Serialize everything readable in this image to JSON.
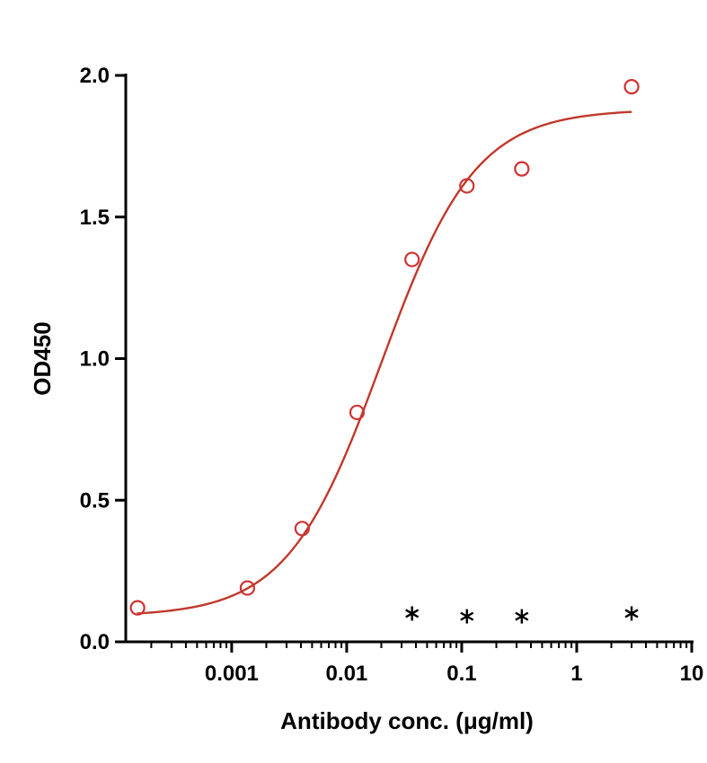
{
  "chart_data": {
    "type": "scatter",
    "title": "",
    "xlabel": "Antibody conc. (μg/ml)",
    "ylabel": "OD450",
    "x_scale": "log",
    "xlim": [
      0.00012,
      10
    ],
    "ylim": [
      0,
      2.0
    ],
    "x_ticks": [
      {
        "value": 0.001,
        "label": "0.001"
      },
      {
        "value": 0.01,
        "label": "0.01"
      },
      {
        "value": 0.1,
        "label": "0.1"
      },
      {
        "value": 1,
        "label": "1"
      },
      {
        "value": 10,
        "label": "10"
      }
    ],
    "y_ticks": [
      {
        "value": 0.0,
        "label": "0.0"
      },
      {
        "value": 0.5,
        "label": "0.5"
      },
      {
        "value": 1.0,
        "label": "1.0"
      },
      {
        "value": 1.5,
        "label": "1.5"
      },
      {
        "value": 2.0,
        "label": "2.0"
      }
    ],
    "grid": false,
    "legend": "none",
    "series": [
      {
        "marker": "open-circle",
        "color": "#d03232",
        "points": [
          {
            "x": 0.000152,
            "y": 0.12
          },
          {
            "x": 0.00137,
            "y": 0.19
          },
          {
            "x": 0.0041,
            "y": 0.4
          },
          {
            "x": 0.0123,
            "y": 0.81
          },
          {
            "x": 0.037,
            "y": 1.35
          },
          {
            "x": 0.111,
            "y": 1.61
          },
          {
            "x": 0.333,
            "y": 1.67
          },
          {
            "x": 3.0,
            "y": 1.96
          }
        ],
        "fit": {
          "type": "4PL",
          "bottom": 0.09,
          "top": 1.88,
          "ec50": 0.02,
          "hill": 1.06,
          "x_range": [
            0.00015,
            3.0
          ],
          "color": "#c0392b"
        }
      },
      {
        "marker": "asterisk",
        "color": "#000000",
        "points": [
          {
            "x": 0.037,
            "y": 0.1
          },
          {
            "x": 0.111,
            "y": 0.09
          },
          {
            "x": 0.333,
            "y": 0.09
          },
          {
            "x": 3.0,
            "y": 0.1
          }
        ]
      }
    ]
  }
}
